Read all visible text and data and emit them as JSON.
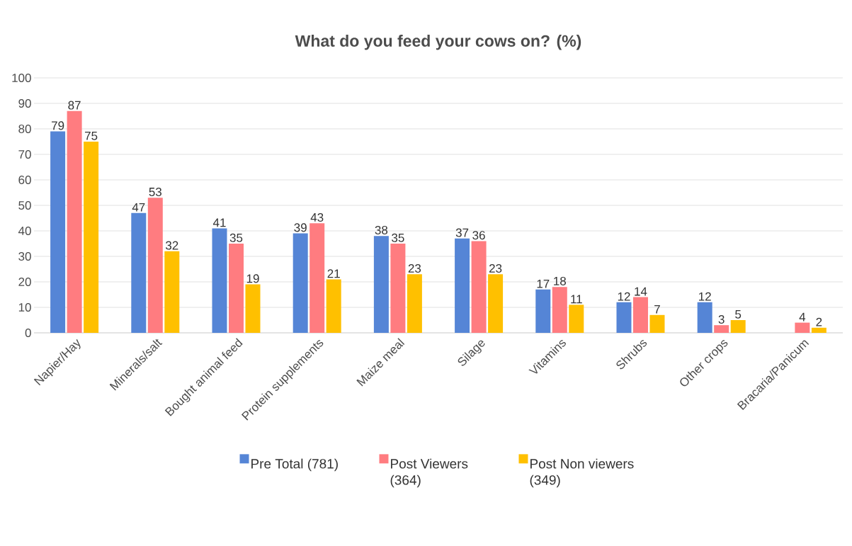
{
  "chart_data": {
    "type": "bar",
    "title": "What do you feed your cows on? (%)",
    "categories": [
      "Napier/Hay",
      "Minerals/salt",
      "Bought animal feed",
      "Protein supplements",
      "Maize meal",
      "Silage",
      "Vitamins",
      "Shrubs",
      "Other crops",
      "Bracaria/Panicum"
    ],
    "series": [
      {
        "name": "Pre Total (781)",
        "color": "#5585d6",
        "values": [
          79,
          47,
          41,
          39,
          38,
          37,
          17,
          12,
          12,
          null
        ]
      },
      {
        "name": "Post Viewers (364)",
        "color": "#ff7c80",
        "values": [
          87,
          53,
          35,
          43,
          35,
          36,
          18,
          14,
          3,
          4
        ]
      },
      {
        "name": "Post Non viewers (349)",
        "color": "#ffc000",
        "values": [
          75,
          32,
          19,
          21,
          23,
          23,
          11,
          7,
          5,
          2
        ]
      }
    ],
    "ylim": [
      0,
      100
    ],
    "yticks": [
      0,
      10,
      20,
      30,
      40,
      50,
      60,
      70,
      80,
      90,
      100
    ],
    "grid": "y",
    "legend": "bottom",
    "data_labels": true
  }
}
